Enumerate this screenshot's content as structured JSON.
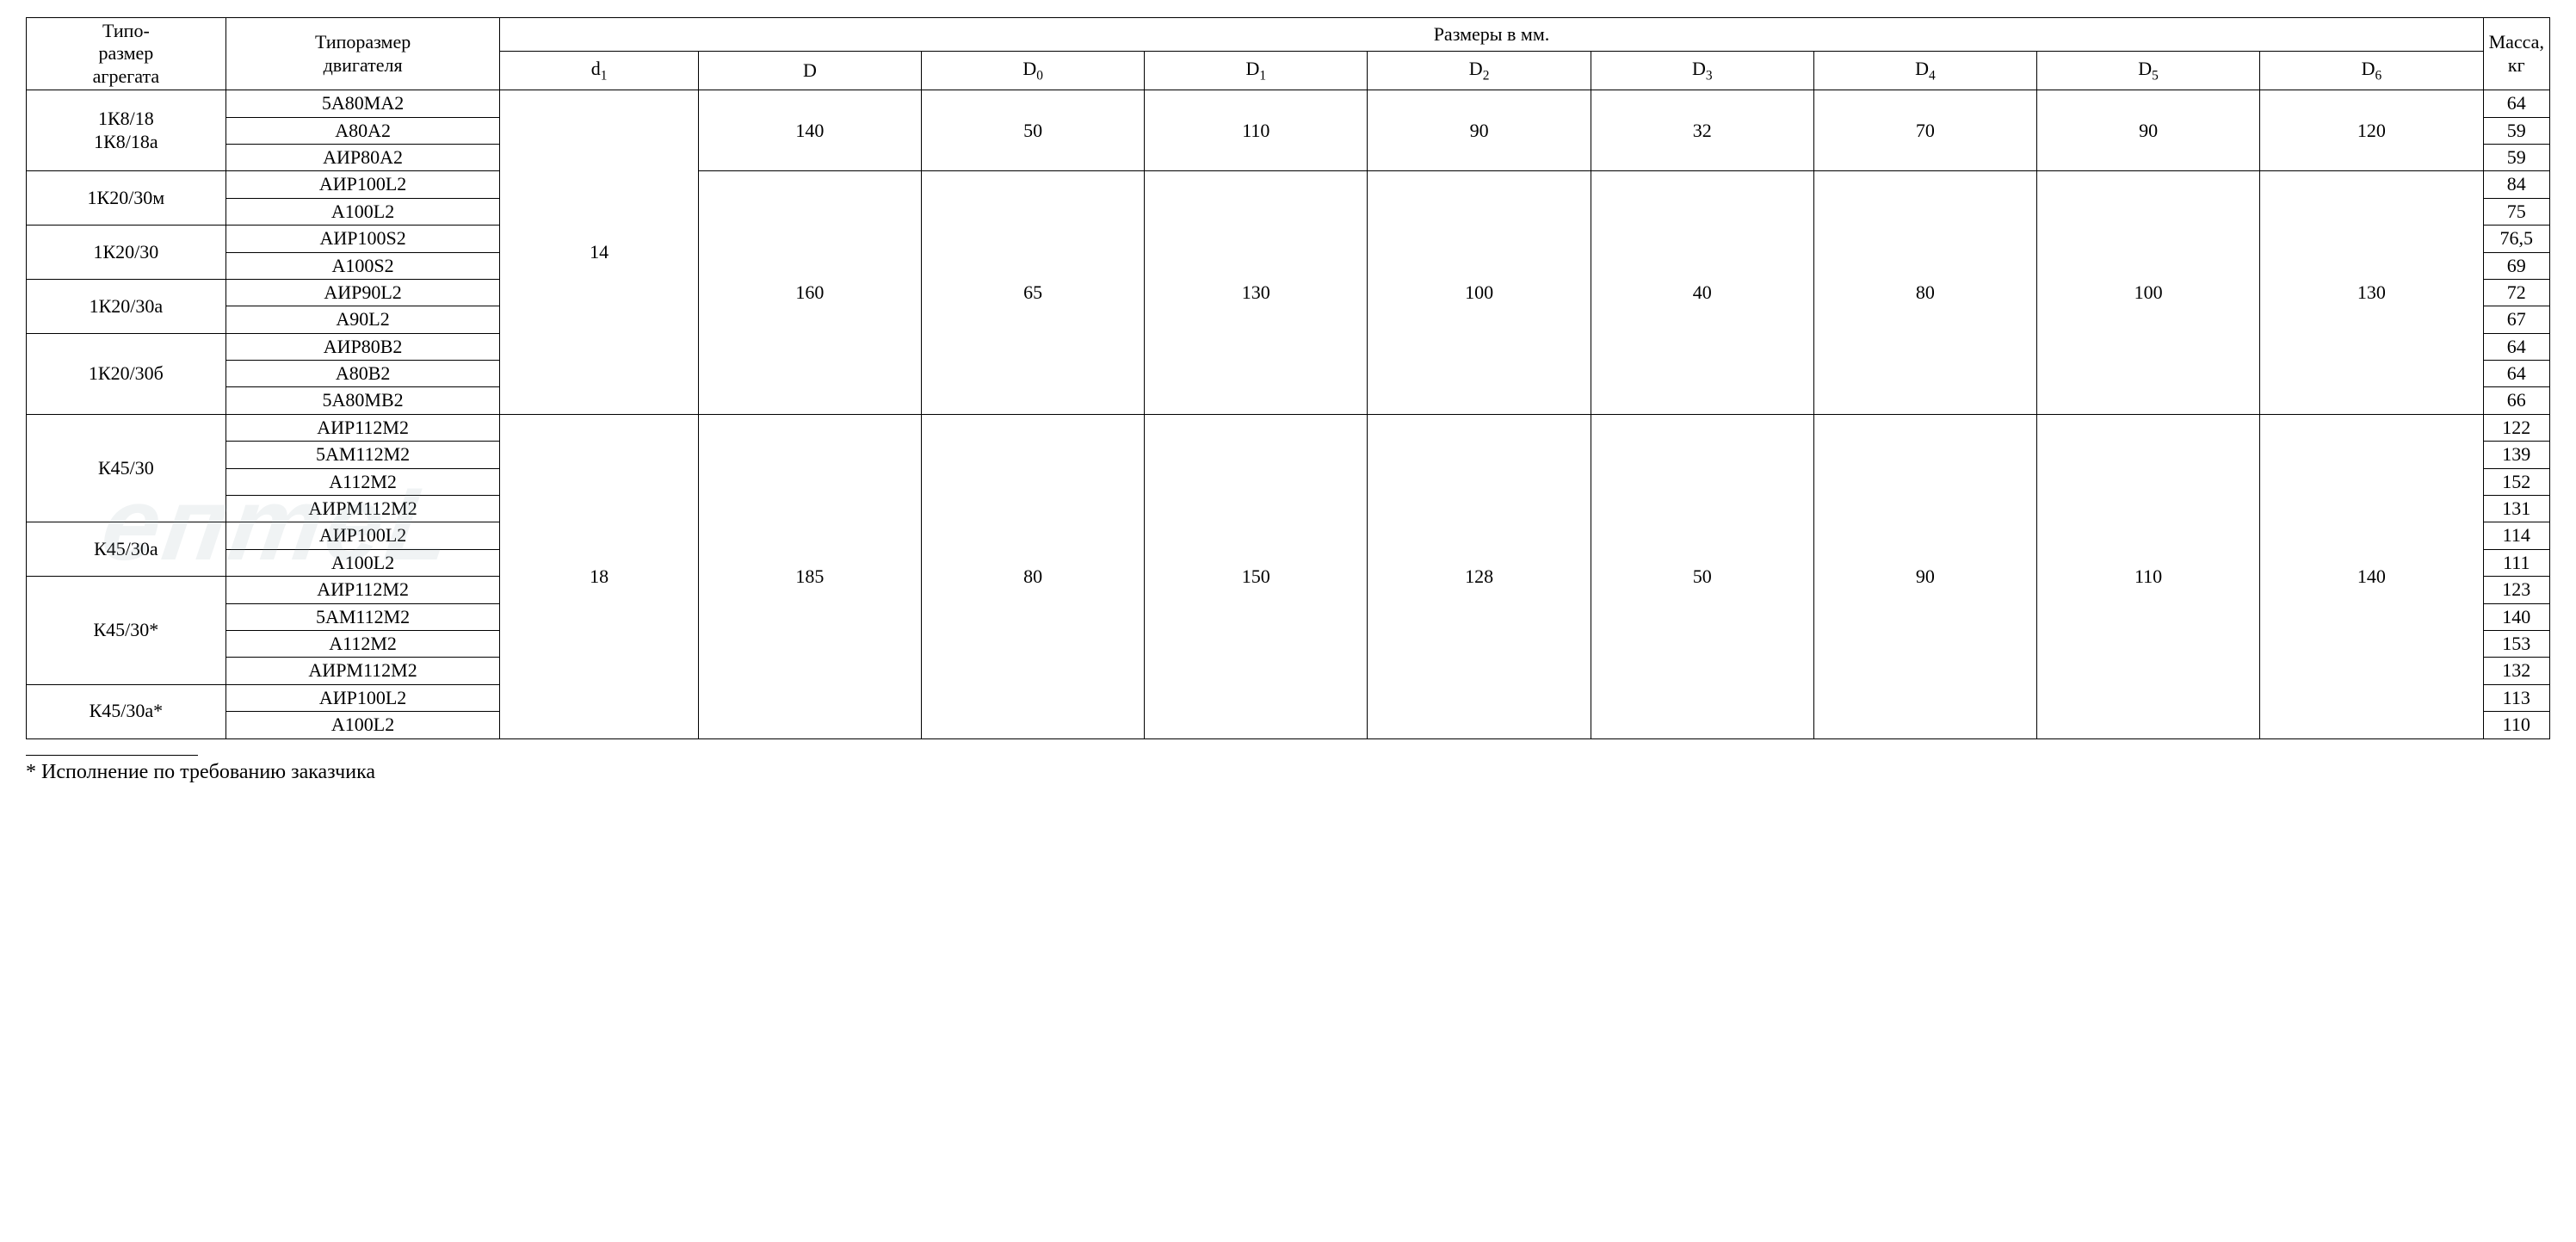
{
  "table": {
    "background_color": "#ffffff",
    "border_color": "#000000",
    "font_family": "Times New Roman",
    "cell_fontsize_pt": 16,
    "header": {
      "col_agg": "Типо-\nразмер\nагрегата",
      "col_motor": "Типоразмер\nдвигателя",
      "col_dims_group": "Размеры в мм.",
      "col_mass": "Масса, кг",
      "dim_cols": [
        "d₁",
        "D",
        "D₀",
        "D₁",
        "D₂",
        "D₃",
        "D₄",
        "D₅",
        "D₆"
      ]
    },
    "column_widths_pct": [
      8,
      11,
      8,
      9,
      9,
      9,
      9,
      9,
      9,
      9,
      9,
      7
    ],
    "d1_blocks": [
      {
        "d1": "14",
        "dim_groups": [
          {
            "dims": {
              "D": "140",
              "D0": "50",
              "D1": "110",
              "D2": "90",
              "D3": "32",
              "D4": "70",
              "D5": "90",
              "D6": "120"
            },
            "aggregates": [
              {
                "agg_label": "1К8/18\n1К8/18а",
                "motors": [
                  {
                    "motor": "5А80МА2",
                    "mass": "64"
                  },
                  {
                    "motor": "А80А2",
                    "mass": "59"
                  },
                  {
                    "motor": "АИР80А2",
                    "mass": "59"
                  }
                ]
              }
            ]
          },
          {
            "dims": {
              "D": "160",
              "D0": "65",
              "D1": "130",
              "D2": "100",
              "D3": "40",
              "D4": "80",
              "D5": "100",
              "D6": "130"
            },
            "aggregates": [
              {
                "agg_label": "1К20/30м",
                "motors": [
                  {
                    "motor": "АИР100L2",
                    "mass": "84"
                  },
                  {
                    "motor": "А100L2",
                    "mass": "75"
                  }
                ]
              },
              {
                "agg_label": "1К20/30",
                "motors": [
                  {
                    "motor": "АИР100S2",
                    "mass": "76,5"
                  },
                  {
                    "motor": "А100S2",
                    "mass": "69"
                  }
                ]
              },
              {
                "agg_label": "1К20/30а",
                "motors": [
                  {
                    "motor": "АИР90L2",
                    "mass": "72"
                  },
                  {
                    "motor": "А90L2",
                    "mass": "67"
                  }
                ]
              },
              {
                "agg_label": "1К20/30б",
                "motors": [
                  {
                    "motor": "АИР80В2",
                    "mass": "64"
                  },
                  {
                    "motor": "А80В2",
                    "mass": "64"
                  },
                  {
                    "motor": "5А80МВ2",
                    "mass": "66"
                  }
                ]
              }
            ]
          }
        ]
      },
      {
        "d1": "18",
        "dim_groups": [
          {
            "dims": {
              "D": "185",
              "D0": "80",
              "D1": "150",
              "D2": "128",
              "D3": "50",
              "D4": "90",
              "D5": "110",
              "D6": "140"
            },
            "aggregates": [
              {
                "agg_label": "К45/30",
                "motors": [
                  {
                    "motor": "АИР112М2",
                    "mass": "122"
                  },
                  {
                    "motor": "5АМ112М2",
                    "mass": "139"
                  },
                  {
                    "motor": "А112М2",
                    "mass": "152"
                  },
                  {
                    "motor": "АИРМ112М2",
                    "mass": "131"
                  }
                ]
              },
              {
                "agg_label": "К45/30а",
                "motors": [
                  {
                    "motor": "АИР100L2",
                    "mass": "114"
                  },
                  {
                    "motor": "А100L2",
                    "mass": "111"
                  }
                ]
              },
              {
                "agg_label": "К45/30*",
                "motors": [
                  {
                    "motor": "АИР112М2",
                    "mass": "123"
                  },
                  {
                    "motor": "5АМ112М2",
                    "mass": "140"
                  },
                  {
                    "motor": "А112М2",
                    "mass": "153"
                  },
                  {
                    "motor": "АИРМ112М2",
                    "mass": "132"
                  }
                ]
              },
              {
                "agg_label": "К45/30а*",
                "motors": [
                  {
                    "motor": "АИР100L2",
                    "mass": "113"
                  },
                  {
                    "motor": "А100L2",
                    "mass": "110"
                  }
                ]
              }
            ]
          }
        ]
      }
    ]
  },
  "footnote": "* Исполнение по требованию заказчика",
  "watermark_text": "eптeL"
}
